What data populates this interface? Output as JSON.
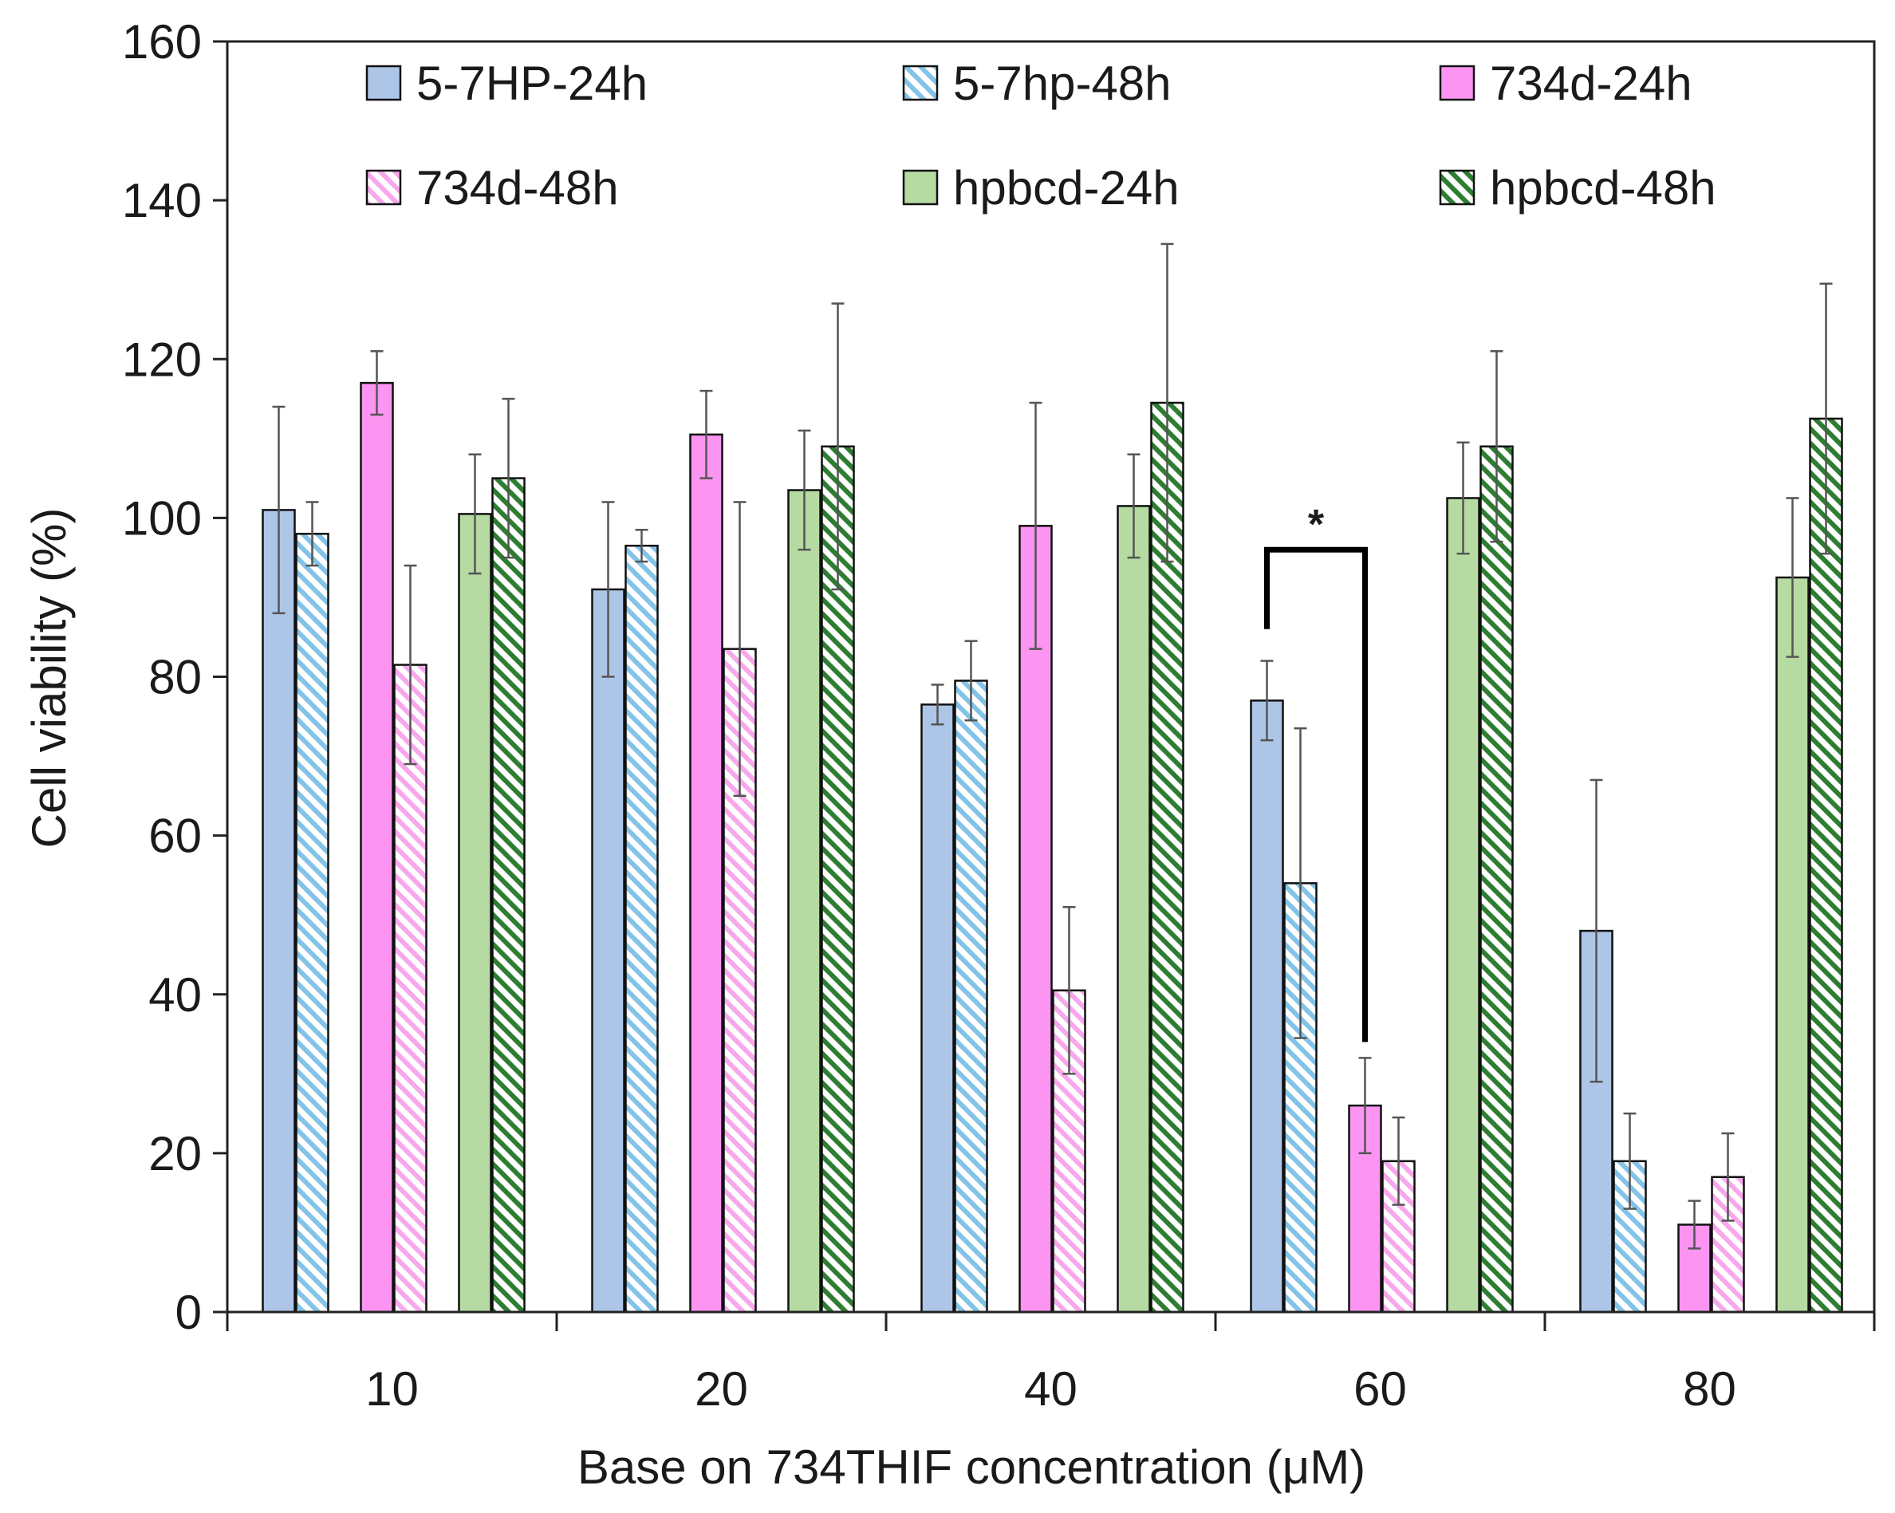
{
  "chart_data": {
    "type": "bar",
    "title": "",
    "xlabel": "Base on 734THIF concentration (μM)",
    "ylabel": "Cell viability (%)",
    "ylim": [
      0,
      160
    ],
    "yticks": [
      0,
      20,
      40,
      60,
      80,
      100,
      120,
      140,
      160
    ],
    "categories": [
      "10",
      "20",
      "40",
      "60",
      "80"
    ],
    "legend_position": "top",
    "series": [
      {
        "name": "5-7HP-24h",
        "values": [
          101,
          91,
          76.5,
          77,
          48
        ],
        "errors": [
          13,
          11,
          2.5,
          5,
          19
        ],
        "color": "#adc6e8",
        "pattern": "solid",
        "stripe_color": ""
      },
      {
        "name": "5-7hp-48h",
        "values": [
          98,
          96.5,
          79.5,
          54,
          19
        ],
        "errors": [
          4,
          2,
          5,
          19.5,
          6
        ],
        "color": "#ffffff",
        "pattern": "hatch",
        "stripe_color": "#84c3e8"
      },
      {
        "name": "734d-24h",
        "values": [
          117,
          110.5,
          99,
          26,
          11
        ],
        "errors": [
          4,
          5.5,
          15.5,
          6,
          3
        ],
        "color": "#fc94f2",
        "pattern": "solid",
        "stripe_color": ""
      },
      {
        "name": "734d-48h",
        "values": [
          81.5,
          83.5,
          40.5,
          19,
          17
        ],
        "errors": [
          12.5,
          18.5,
          10.5,
          5.5,
          5.5
        ],
        "color": "#ffffff",
        "pattern": "hatch",
        "stripe_color": "#f7a8ec"
      },
      {
        "name": "hpbcd-24h",
        "values": [
          100.5,
          103.5,
          101.5,
          102.5,
          92.5
        ],
        "errors": [
          7.5,
          7.5,
          6.5,
          7,
          10
        ],
        "color": "#b5dba3",
        "pattern": "solid",
        "stripe_color": ""
      },
      {
        "name": "hpbcd-48h",
        "values": [
          105,
          109,
          114.5,
          109,
          112.5
        ],
        "errors": [
          10,
          18,
          20,
          12,
          17
        ],
        "color": "#ffffff",
        "pattern": "hatch",
        "stripe_color": "#2e7d32"
      }
    ],
    "annotations": [
      {
        "label": "*",
        "category": "60",
        "from_series": "5-7HP-24h",
        "to_series": "734d-24h",
        "bracket_top": 96,
        "left_end": 86,
        "right_end": 34
      }
    ]
  }
}
